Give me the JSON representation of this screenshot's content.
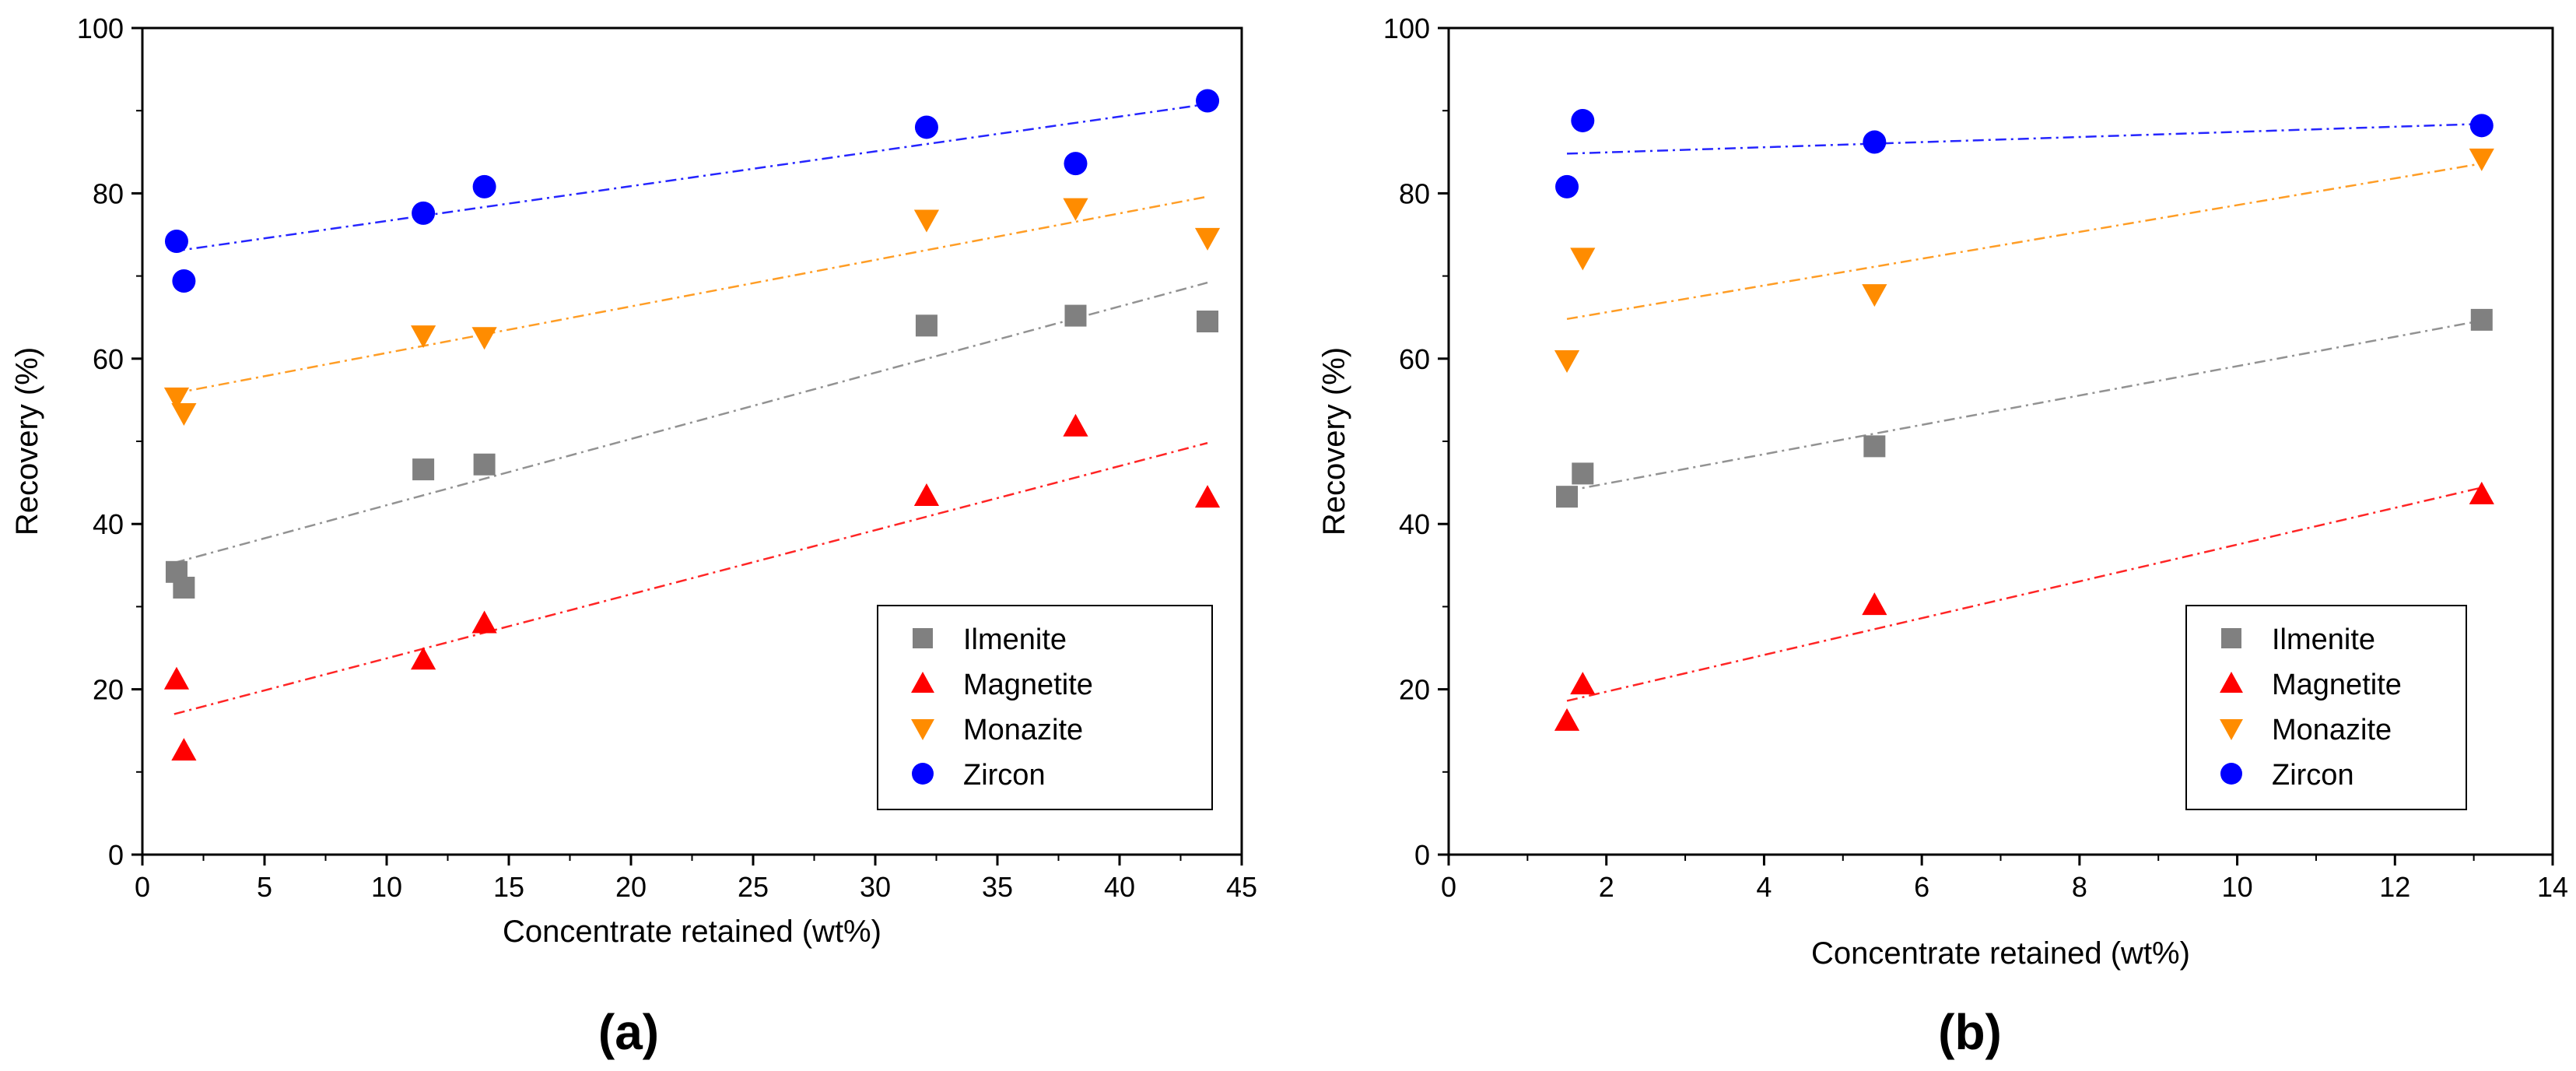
{
  "chart_data": [
    {
      "panel_label": "(a)",
      "type": "scatter",
      "xlabel": "Concentrate retained (wt%)",
      "ylabel": "Recovery (%)",
      "xlim": [
        0,
        45
      ],
      "ylim": [
        0,
        100
      ],
      "xticks": [
        0,
        5,
        10,
        15,
        20,
        25,
        30,
        35,
        40,
        45
      ],
      "yticks": [
        0,
        20,
        40,
        60,
        80,
        100
      ],
      "legend_position": "bottom-right",
      "series": [
        {
          "name": "Ilmenite",
          "marker": "square",
          "color": "#808080",
          "x": [
            1.4,
            1.7,
            11.5,
            14.0,
            32.1,
            38.2,
            43.6
          ],
          "y": [
            34.2,
            32.3,
            46.6,
            47.2,
            64.0,
            65.2,
            64.5
          ],
          "trend": [
            [
              1.3,
              35.3
            ],
            [
              43.6,
              69.2
            ]
          ]
        },
        {
          "name": "Magnetite",
          "marker": "triangle-up",
          "color": "#ff0000",
          "x": [
            1.4,
            1.7,
            11.5,
            14.0,
            32.1,
            38.2,
            43.6
          ],
          "y": [
            21.2,
            12.6,
            23.6,
            28.0,
            43.4,
            51.8,
            43.2
          ],
          "trend": [
            [
              1.3,
              17.0
            ],
            [
              43.6,
              49.8
            ]
          ]
        },
        {
          "name": "Monazite",
          "marker": "triangle-down",
          "color": "#ff8c00",
          "x": [
            1.4,
            1.7,
            11.5,
            14.0,
            32.1,
            38.2,
            43.6
          ],
          "y": [
            55.3,
            53.4,
            62.8,
            62.6,
            76.8,
            78.2,
            74.6
          ],
          "trend": [
            [
              1.3,
              55.8
            ],
            [
              43.6,
              79.6
            ]
          ]
        },
        {
          "name": "Zircon",
          "marker": "circle",
          "color": "#0000ff",
          "x": [
            1.4,
            1.7,
            11.5,
            14.0,
            32.1,
            38.2,
            43.6
          ],
          "y": [
            74.2,
            69.4,
            77.6,
            80.8,
            88.0,
            83.6,
            91.2
          ],
          "trend": [
            [
              1.3,
              73.0
            ],
            [
              43.6,
              90.8
            ]
          ]
        }
      ]
    },
    {
      "panel_label": "(b)",
      "type": "scatter",
      "xlabel": "Concentrate retained (wt%)",
      "ylabel": "Recovery (%)",
      "xlim": [
        0,
        14
      ],
      "ylim": [
        0,
        100
      ],
      "xticks": [
        0,
        2,
        4,
        6,
        8,
        10,
        12,
        14
      ],
      "yticks": [
        0,
        20,
        40,
        60,
        80,
        100
      ],
      "legend_position": "bottom-right",
      "series": [
        {
          "name": "Ilmenite",
          "marker": "square",
          "color": "#808080",
          "x": [
            1.5,
            1.7,
            5.4,
            13.1
          ],
          "y": [
            43.3,
            46.1,
            49.4,
            64.7
          ],
          "trend": [
            [
              1.5,
              44.0
            ],
            [
              13.1,
              64.6
            ]
          ]
        },
        {
          "name": "Magnetite",
          "marker": "triangle-up",
          "color": "#ff0000",
          "x": [
            1.5,
            1.7,
            5.4,
            13.1
          ],
          "y": [
            16.2,
            20.6,
            30.2,
            43.6
          ],
          "trend": [
            [
              1.5,
              18.6
            ],
            [
              13.1,
              44.4
            ]
          ]
        },
        {
          "name": "Monazite",
          "marker": "triangle-down",
          "color": "#ff8c00",
          "x": [
            1.5,
            1.7,
            5.4,
            13.1
          ],
          "y": [
            59.8,
            72.2,
            67.8,
            84.2
          ],
          "trend": [
            [
              1.5,
              64.8
            ],
            [
              13.1,
              83.6
            ]
          ]
        },
        {
          "name": "Zircon",
          "marker": "circle",
          "color": "#0000ff",
          "x": [
            1.5,
            1.7,
            5.4,
            13.1
          ],
          "y": [
            80.8,
            88.8,
            86.2,
            88.2
          ],
          "trend": [
            [
              1.5,
              84.8
            ],
            [
              13.1,
              88.4
            ]
          ]
        }
      ]
    }
  ]
}
